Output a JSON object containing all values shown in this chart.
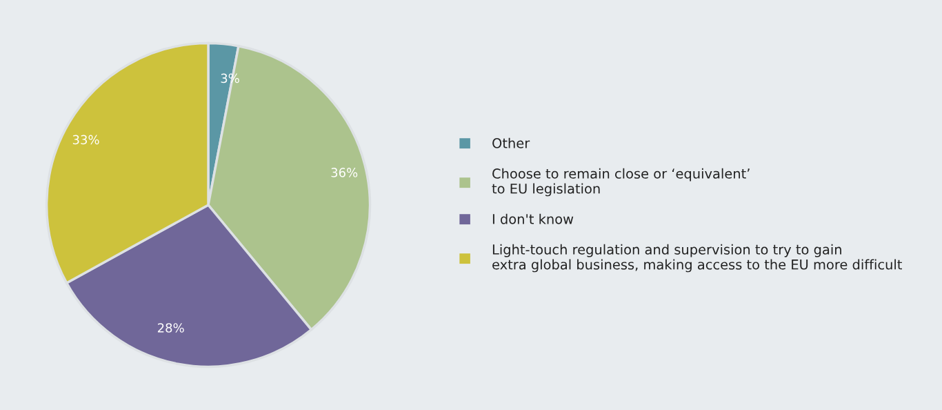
{
  "chart_data": {
    "type": "pie",
    "categories": [
      "Other",
      "Choose to remain close or ‘equivalent’\nto EU legislation",
      "I don't know",
      "Light-touch regulation and supervision to try to gain\nextra global business, making access to the EU more difficult"
    ],
    "values": [
      3,
      36,
      28,
      33
    ],
    "colors": [
      "#5b97a5",
      "#acc38d",
      "#706799",
      "#cdc23c"
    ],
    "value_labels": [
      "3%",
      "36%",
      "28%",
      "33%"
    ],
    "legend": "right"
  }
}
